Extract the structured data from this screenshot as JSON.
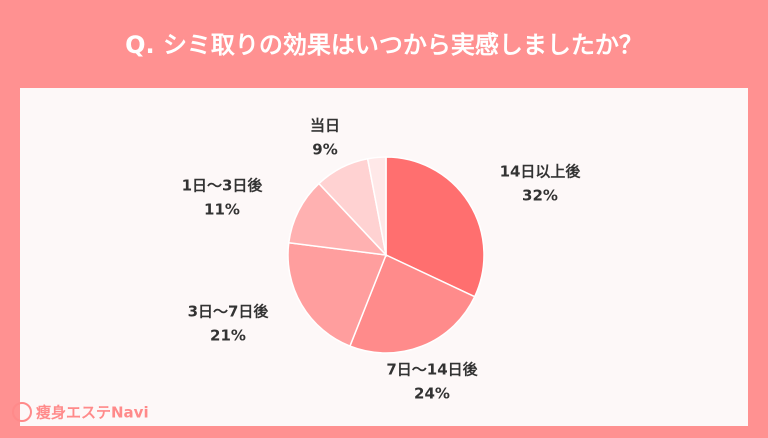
{
  "chart_data": {
    "type": "pie",
    "title": "Q. シミ取りの効果はいつから実感しましたか？",
    "categories": [
      "14日以上後",
      "7日〜14日後",
      "3日〜7日後",
      "1日〜3日後",
      "当日",
      null
    ],
    "values": [
      32,
      24,
      21,
      11,
      9,
      3
    ],
    "value_labels": [
      "32%",
      "24%",
      "21%",
      "11%",
      "9%",
      null
    ],
    "colors": [
      "#ff6f6f",
      "#ff8b8b",
      "#ff9e9e",
      "#ffb1b1",
      "#ffd2d2",
      "#ffe8e8"
    ]
  },
  "brand": "瘦身エステNavi"
}
